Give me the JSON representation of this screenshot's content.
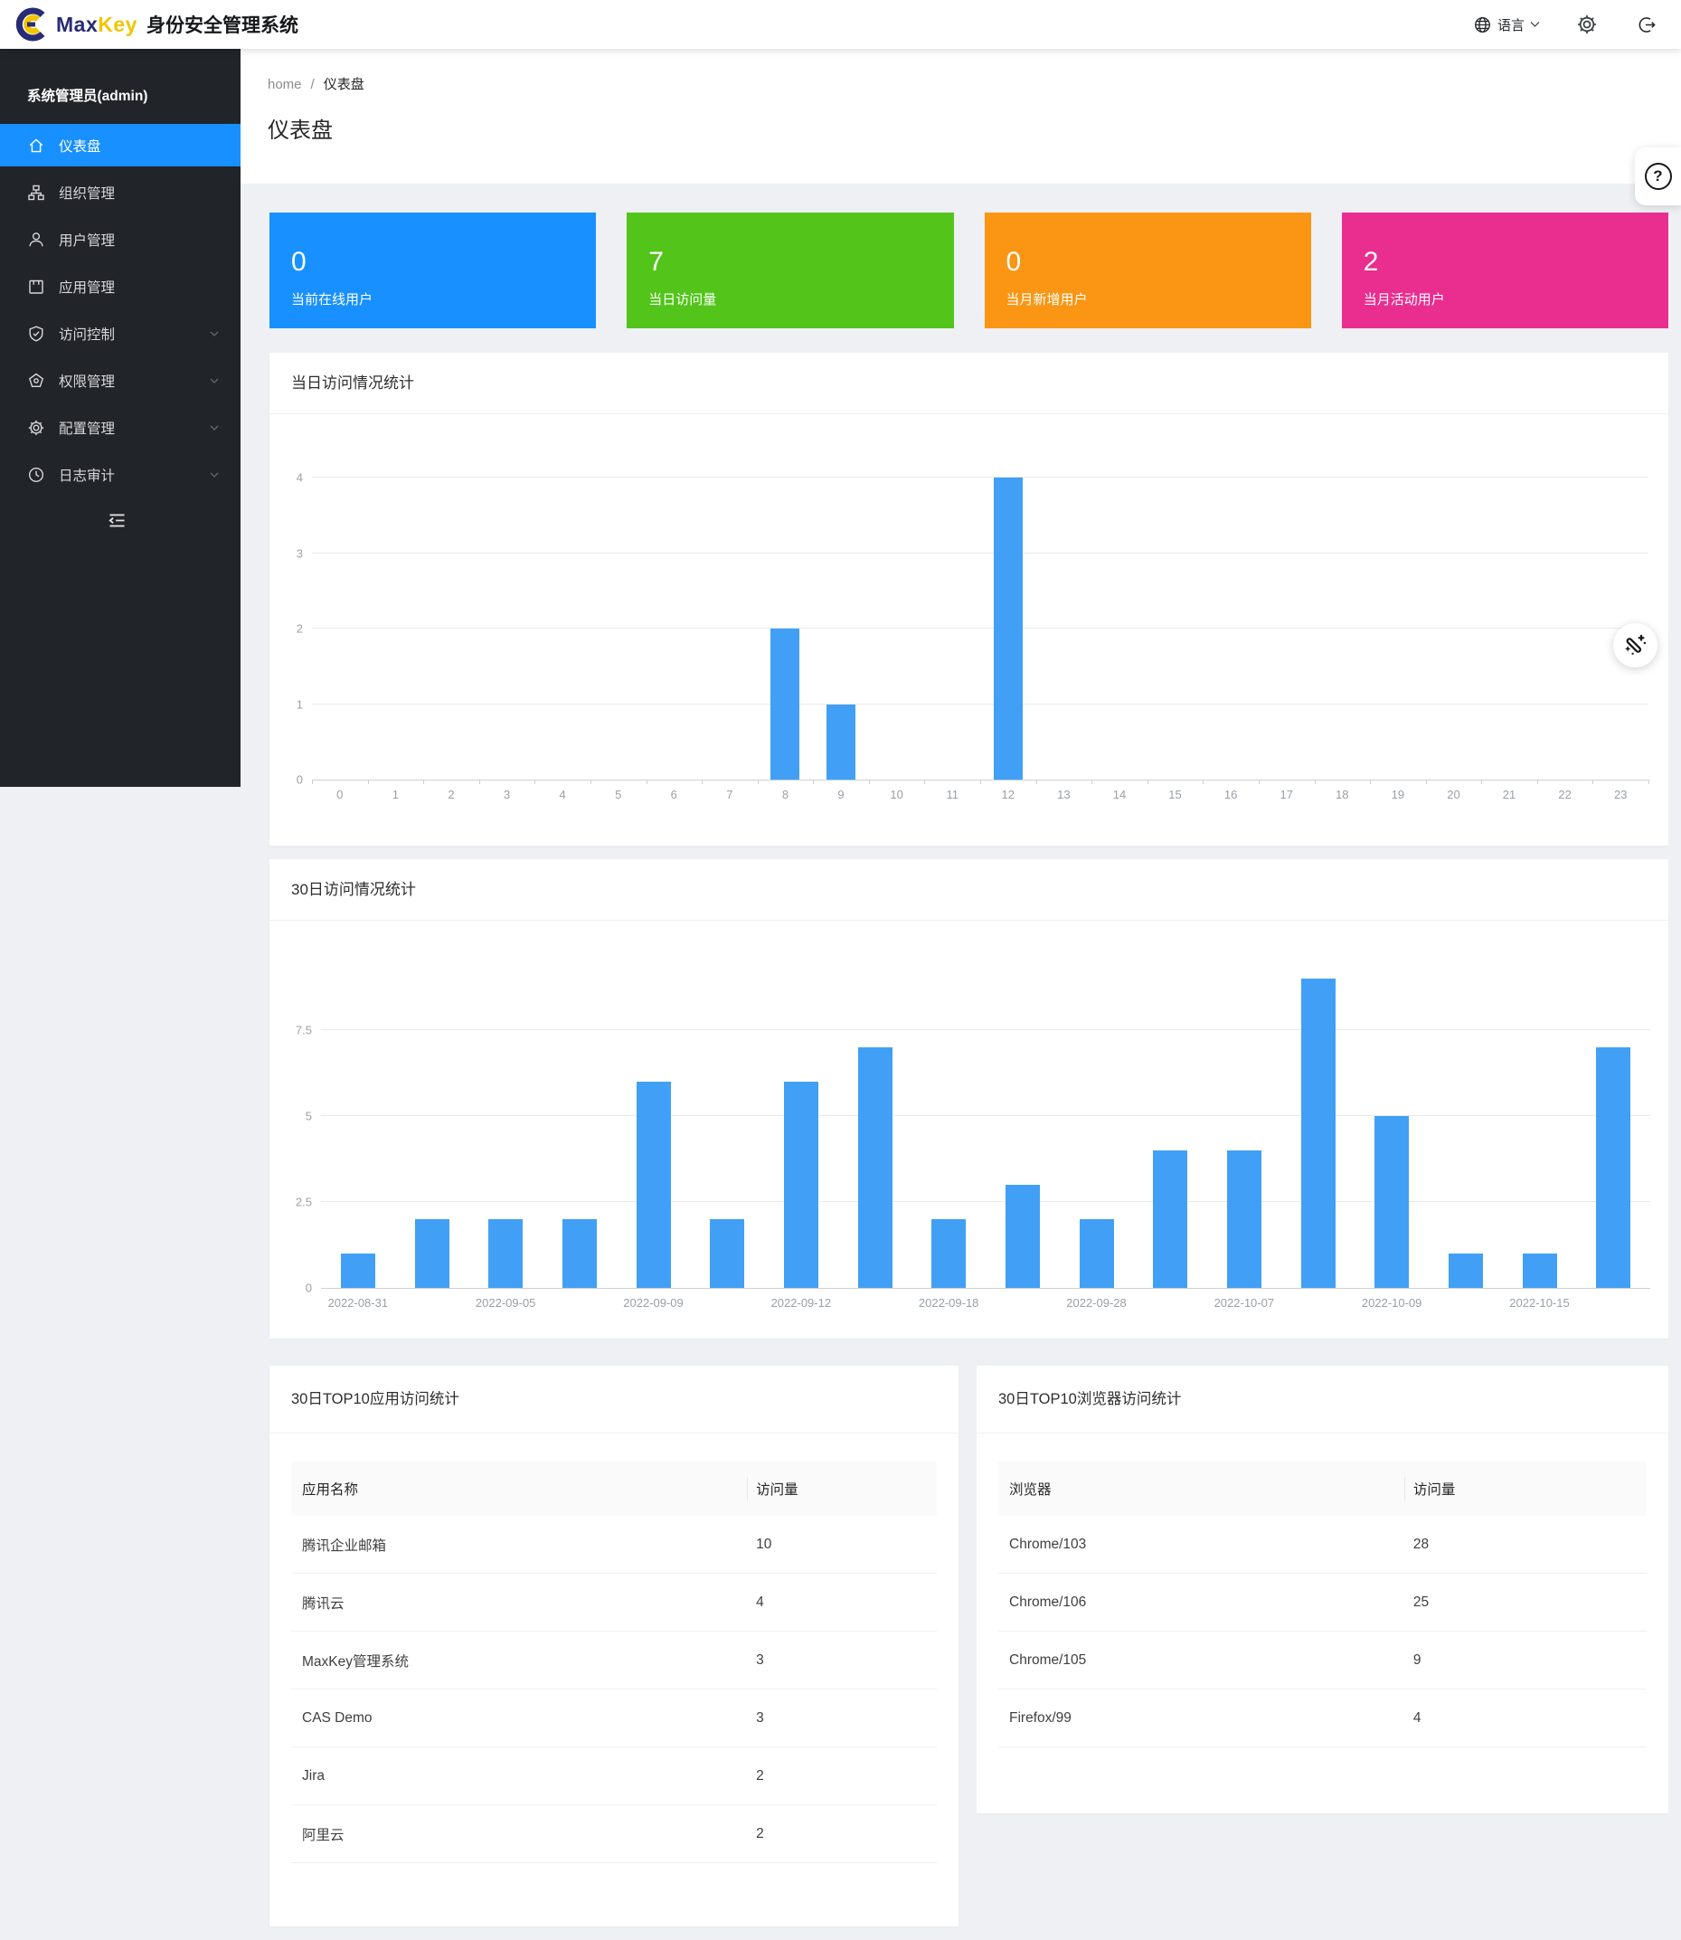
{
  "header": {
    "brand": {
      "max": "Max",
      "key": "Key",
      "product": "身份安全管理系统"
    },
    "language_label": "语言"
  },
  "icons": {
    "help": "?",
    "header_icons": [
      "globe-icon",
      "chevron-down-icon",
      "settings-icon",
      "logout-icon"
    ],
    "floating_icons": [
      "help-icon",
      "magic-wand-icon"
    ],
    "sidebar_collapse": "menu-fold-icon"
  },
  "sidebar": {
    "user": "系统管理员(admin)",
    "items": [
      {
        "label": "仪表盘",
        "icon": "home-icon",
        "active": true,
        "expandable": false
      },
      {
        "label": "组织管理",
        "icon": "org-icon",
        "active": false,
        "expandable": false
      },
      {
        "label": "用户管理",
        "icon": "user-icon",
        "active": false,
        "expandable": false
      },
      {
        "label": "应用管理",
        "icon": "app-icon",
        "active": false,
        "expandable": false
      },
      {
        "label": "访问控制",
        "icon": "shield-check-icon",
        "active": false,
        "expandable": true
      },
      {
        "label": "权限管理",
        "icon": "pentagon-icon",
        "active": false,
        "expandable": true
      },
      {
        "label": "配置管理",
        "icon": "gear-icon",
        "active": false,
        "expandable": true
      },
      {
        "label": "日志审计",
        "icon": "clock-icon",
        "active": false,
        "expandable": true
      }
    ]
  },
  "breadcrumb": {
    "home": "home",
    "separator": "/",
    "current": "仪表盘"
  },
  "page_title": "仪表盘",
  "stats": [
    {
      "value": "0",
      "label": "当前在线用户",
      "color": "#1890ff"
    },
    {
      "value": "7",
      "label": "当日访问量",
      "color": "#52c41a"
    },
    {
      "value": "0",
      "label": "当月新增用户",
      "color": "#fa9614"
    },
    {
      "value": "2",
      "label": "当月活动用户",
      "color": "#ea2e90"
    }
  ],
  "chart_data": [
    {
      "type": "bar",
      "title": "当日访问情况统计",
      "categories": [
        "0",
        "1",
        "2",
        "3",
        "4",
        "5",
        "6",
        "7",
        "8",
        "9",
        "10",
        "11",
        "12",
        "13",
        "14",
        "15",
        "16",
        "17",
        "18",
        "19",
        "20",
        "21",
        "22",
        "23"
      ],
      "values": [
        0,
        0,
        0,
        0,
        0,
        0,
        0,
        0,
        2,
        1,
        0,
        0,
        4,
        0,
        0,
        0,
        0,
        0,
        0,
        0,
        0,
        0,
        0,
        0
      ],
      "xlabel": "",
      "ylabel": "",
      "ylim": [
        0,
        4
      ],
      "yticks": [
        0,
        1,
        2,
        3,
        4
      ],
      "grid": true,
      "legend": "none",
      "bar_color": "#41a0f5"
    },
    {
      "type": "bar",
      "title": "30日访问情况统计",
      "categories": [
        "2022-08-31",
        "",
        "2022-09-05",
        "",
        "2022-09-09",
        "",
        "2022-09-12",
        "",
        "2022-09-18",
        "",
        "2022-09-28",
        "",
        "2022-10-07",
        "",
        "2022-10-09",
        "",
        "2022-10-15",
        ""
      ],
      "values": [
        1,
        2,
        2,
        2,
        6,
        2,
        6,
        7,
        2,
        3,
        2,
        4,
        4,
        9,
        5,
        1,
        1,
        7
      ],
      "xlabel": "",
      "ylabel": "",
      "ylim": [
        0,
        9.7
      ],
      "yticks": [
        0,
        2.5,
        5,
        7.5
      ],
      "grid": true,
      "legend": "none",
      "bar_color": "#41a0f5"
    }
  ],
  "tables": {
    "apps": {
      "title": "30日TOP10应用访问统计",
      "headers": [
        "应用名称",
        "访问量"
      ],
      "rows": [
        {
          "name": "腾讯企业邮箱",
          "count": "10"
        },
        {
          "name": "腾讯云",
          "count": "4"
        },
        {
          "name": "MaxKey管理系统",
          "count": "3"
        },
        {
          "name": "CAS Demo",
          "count": "3"
        },
        {
          "name": "Jira",
          "count": "2"
        },
        {
          "name": "阿里云",
          "count": "2"
        }
      ]
    },
    "browsers": {
      "title": "30日TOP10浏览器访问统计",
      "headers": [
        "浏览器",
        "访问量"
      ],
      "rows": [
        {
          "name": "Chrome/103",
          "count": "28"
        },
        {
          "name": "Chrome/106",
          "count": "25"
        },
        {
          "name": "Chrome/105",
          "count": "9"
        },
        {
          "name": "Firefox/99",
          "count": "4"
        }
      ]
    }
  }
}
